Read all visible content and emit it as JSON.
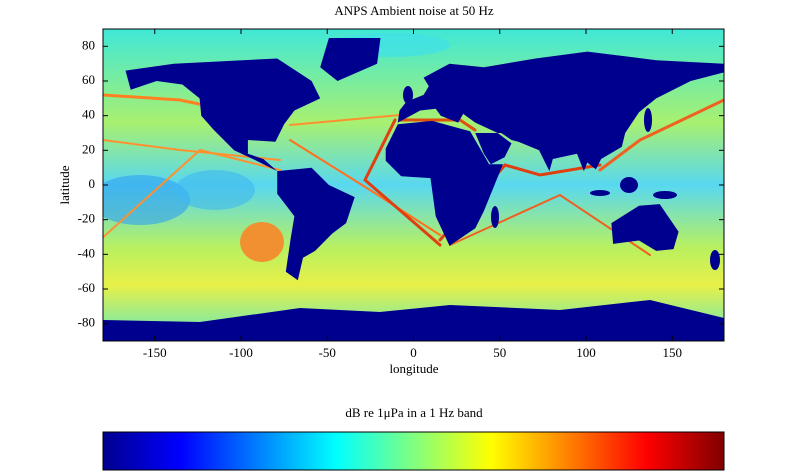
{
  "chart_data": {
    "type": "heatmap",
    "title": "ANPS Ambient noise at 50 Hz",
    "x_label": "longitude",
    "y_label": "latitude",
    "xlim": [
      -180,
      180
    ],
    "ylim": [
      -90,
      90
    ],
    "xticks": [
      -150,
      -100,
      -50,
      0,
      50,
      100,
      150
    ],
    "yticks": [
      -80,
      -60,
      -40,
      -20,
      0,
      20,
      40,
      60,
      80
    ],
    "colorbar_label": "dB re 1μPa in a 1 Hz band",
    "colormap": [
      "#00008f",
      "#0000ff",
      "#0080ff",
      "#00ffff",
      "#80ff80",
      "#ffff00",
      "#ff8000",
      "#ff0000",
      "#800000"
    ]
  }
}
